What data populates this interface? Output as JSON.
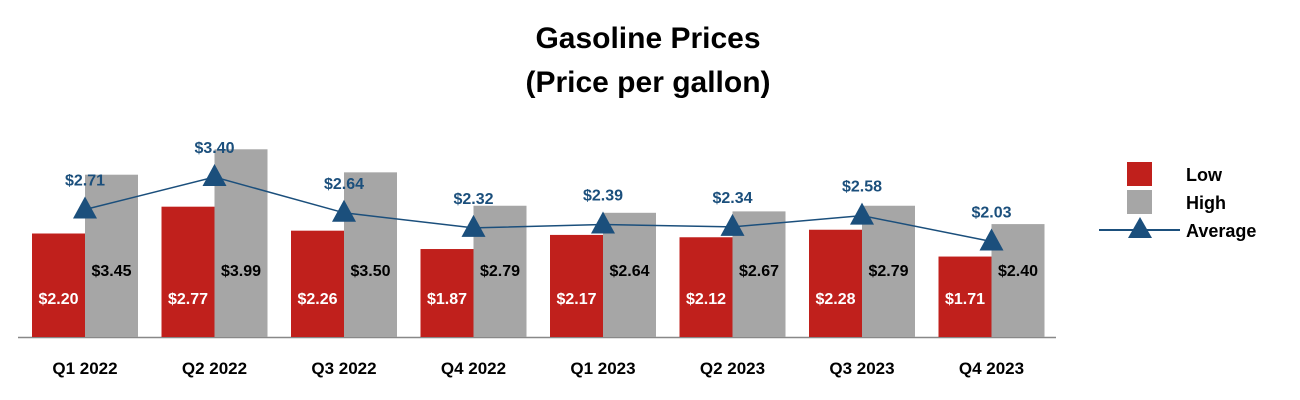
{
  "chart_data": {
    "type": "bar",
    "title": [
      "Gasoline Prices",
      "(Price per gallon)"
    ],
    "categories": [
      "Q1 2022",
      "Q2 2022",
      "Q3 2022",
      "Q4 2022",
      "Q1 2023",
      "Q2 2023",
      "Q3 2023",
      "Q4 2023"
    ],
    "series": [
      {
        "name": "Low",
        "kind": "bar",
        "color": "#c0201c",
        "values": [
          2.2,
          2.77,
          2.26,
          1.87,
          2.17,
          2.12,
          2.28,
          1.71
        ],
        "labels": [
          "$2.20",
          "$2.77",
          "$2.26",
          "$1.87",
          "$2.17",
          "$2.12",
          "$2.28",
          "$1.71"
        ]
      },
      {
        "name": "High",
        "kind": "bar",
        "color": "#a6a6a6",
        "values": [
          3.45,
          3.99,
          3.5,
          2.79,
          2.64,
          2.67,
          2.79,
          2.4
        ],
        "labels": [
          "$3.45",
          "$3.99",
          "$3.50",
          "$2.79",
          "$2.64",
          "$2.67",
          "$2.79",
          "$2.40"
        ]
      },
      {
        "name": "Average",
        "kind": "line",
        "marker": "triangle",
        "color": "#1b4f7c",
        "values": [
          2.71,
          3.4,
          2.64,
          2.32,
          2.39,
          2.34,
          2.58,
          2.03
        ],
        "labels": [
          "$2.71",
          "$3.40",
          "$2.64",
          "$2.32",
          "$2.39",
          "$2.34",
          "$2.58",
          "$2.03"
        ]
      }
    ],
    "legend_position": "right",
    "xlabel": "",
    "ylabel": "",
    "grid": false
  }
}
